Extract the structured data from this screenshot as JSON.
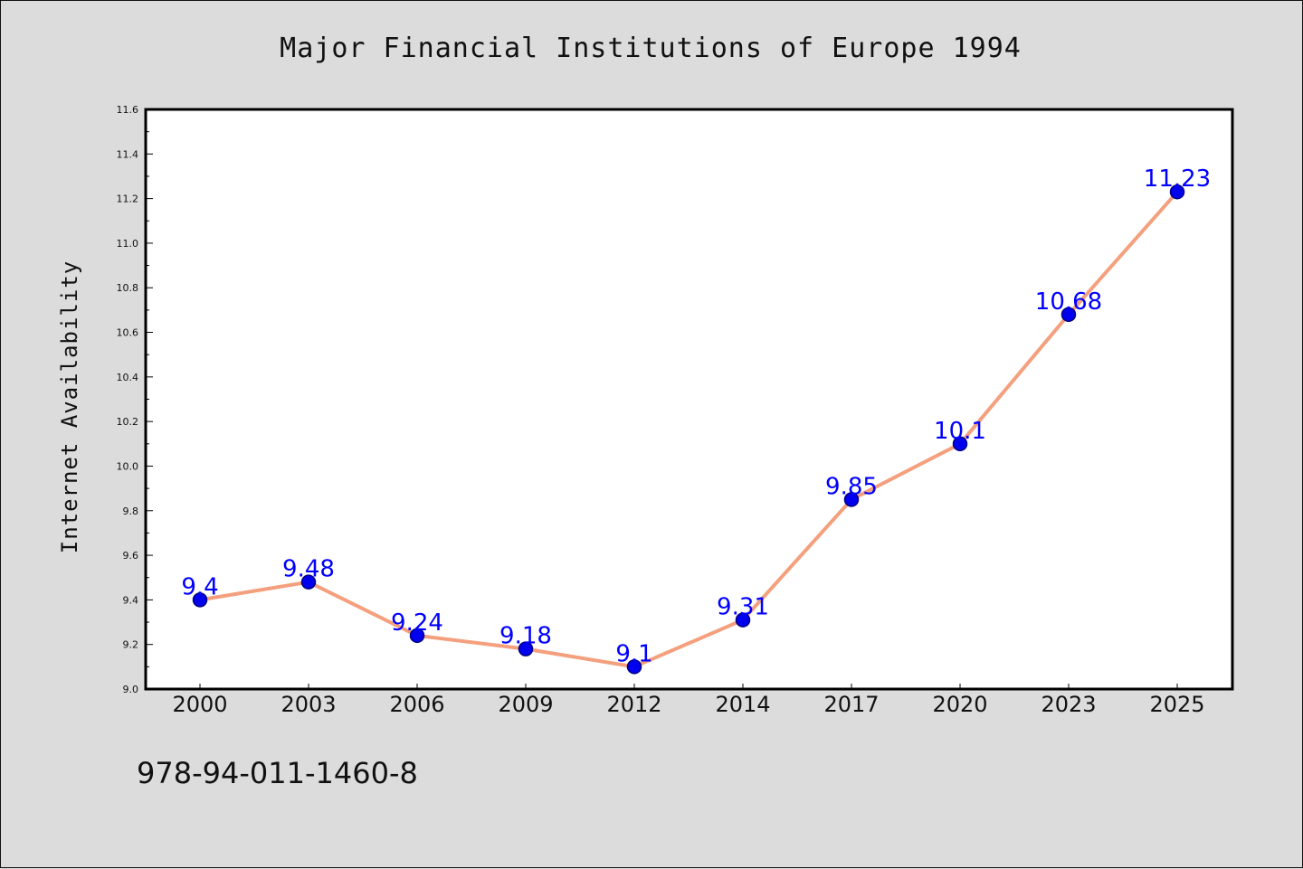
{
  "chart_data": {
    "type": "line",
    "title": "Major Financial Institutions of Europe 1994",
    "xlabel": "",
    "ylabel": "Internet Availability",
    "categories": [
      "2000",
      "2003",
      "2006",
      "2009",
      "2012",
      "2014",
      "2017",
      "2020",
      "2023",
      "2025"
    ],
    "series": [
      {
        "values": [
          9.4,
          9.48,
          9.24,
          9.18,
          9.1,
          9.31,
          9.85,
          10.1,
          10.68,
          11.23
        ],
        "labels": [
          "9.4",
          "9.48",
          "9.24",
          "9.18",
          "9.1",
          "9.31",
          "9.85",
          "10.1",
          "10.68",
          "11.23"
        ]
      }
    ],
    "ylim": [
      9.0,
      11.6
    ],
    "yticks": [
      "9.0",
      "9.2",
      "9.4",
      "9.6",
      "9.8",
      "10.0",
      "10.2",
      "10.4",
      "10.6",
      "10.8",
      "11.0",
      "11.2",
      "11.4",
      "11.6"
    ],
    "grid": false,
    "legend": "none",
    "colors": {
      "line": "#f4a07e",
      "marker": "#0000ee",
      "marker_edge": "#000080",
      "data_label": "#0000ff",
      "plot_bg": "#ffffff",
      "figure_bg": "#dcdcdc"
    }
  },
  "footer": {
    "isbn": "978-94-011-1460-8"
  }
}
